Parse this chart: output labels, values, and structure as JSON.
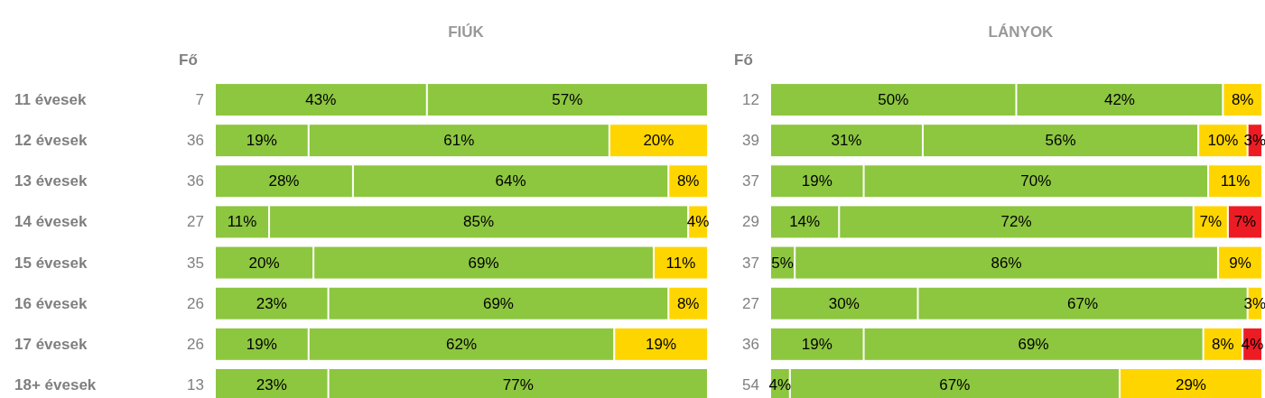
{
  "chart_data": [
    {
      "type": "bar",
      "orientation": "horizontal",
      "stacked": true,
      "title": "FIÚK",
      "y2label": "Fő",
      "tick_labels": "y",
      "xlim": [
        0,
        100
      ],
      "categories": [
        "11 évesek",
        "12 évesek",
        "13 évesek",
        "14 évesek",
        "15 évesek",
        "16 évesek",
        "17 évesek",
        "18+ évesek"
      ],
      "y2_categories": [
        "7",
        "36",
        "36",
        "27",
        "35",
        "26",
        "26",
        "13"
      ],
      "series": [
        {
          "color": "#8dc63f",
          "values": [
            43,
            19,
            28,
            11,
            20,
            23,
            19,
            23
          ],
          "value_labels": [
            "43%",
            "19%",
            "28%",
            "11%",
            "20%",
            "23%",
            "19%",
            "23%"
          ]
        },
        {
          "color": "#8dc63f",
          "values": [
            57,
            61,
            64,
            85,
            69,
            69,
            62,
            77
          ],
          "value_labels": [
            "57%",
            "61%",
            "64%",
            "85%",
            "69%",
            "69%",
            "62%",
            "77%"
          ]
        },
        {
          "color": "#ffd500",
          "values": [
            null,
            20,
            8,
            4,
            11,
            8,
            19,
            null
          ],
          "value_labels": [
            null,
            "20%",
            "8%",
            "4%",
            "11%",
            "8%",
            "19%",
            null
          ]
        },
        {
          "color": "#ed1c24",
          "values": [
            null,
            null,
            null,
            null,
            null,
            null,
            null,
            null
          ],
          "value_labels": [
            null,
            null,
            null,
            null,
            null,
            null,
            null,
            null
          ]
        }
      ]
    },
    {
      "type": "bar",
      "orientation": "horizontal",
      "stacked": true,
      "title": "LÁNYOK",
      "y2label": "Fő",
      "tick_labels": false,
      "xlim": [
        0,
        100
      ],
      "categories": [
        null,
        null,
        null,
        null,
        null,
        null,
        null,
        null
      ],
      "y2_categories": [
        "12",
        "39",
        "37",
        "29",
        "37",
        "27",
        "36",
        "54"
      ],
      "series": [
        {
          "color": "#8dc63f",
          "values": [
            50,
            31,
            19,
            14,
            5,
            30,
            19,
            4
          ],
          "value_labels": [
            "50%",
            "31%",
            "19%",
            "14%",
            "5%",
            "30%",
            "19%",
            "4%"
          ]
        },
        {
          "color": "#8dc63f",
          "values": [
            42,
            56,
            70,
            72,
            86,
            67,
            69,
            67
          ],
          "value_labels": [
            "42%",
            "56%",
            "70%",
            "72%",
            "86%",
            "67%",
            "69%",
            "67%"
          ]
        },
        {
          "color": "#ffd500",
          "values": [
            8,
            10,
            11,
            7,
            9,
            3,
            8,
            29
          ],
          "value_labels": [
            "8%",
            "10%",
            "11%",
            "7%",
            "9%",
            "3%",
            "8%",
            "29%"
          ]
        },
        {
          "color": "#ed1c24",
          "values": [
            null,
            3,
            null,
            7,
            null,
            null,
            4,
            null
          ],
          "value_labels": [
            null,
            "3%",
            null,
            "7%",
            null,
            null,
            "4%",
            null
          ]
        }
      ]
    }
  ]
}
